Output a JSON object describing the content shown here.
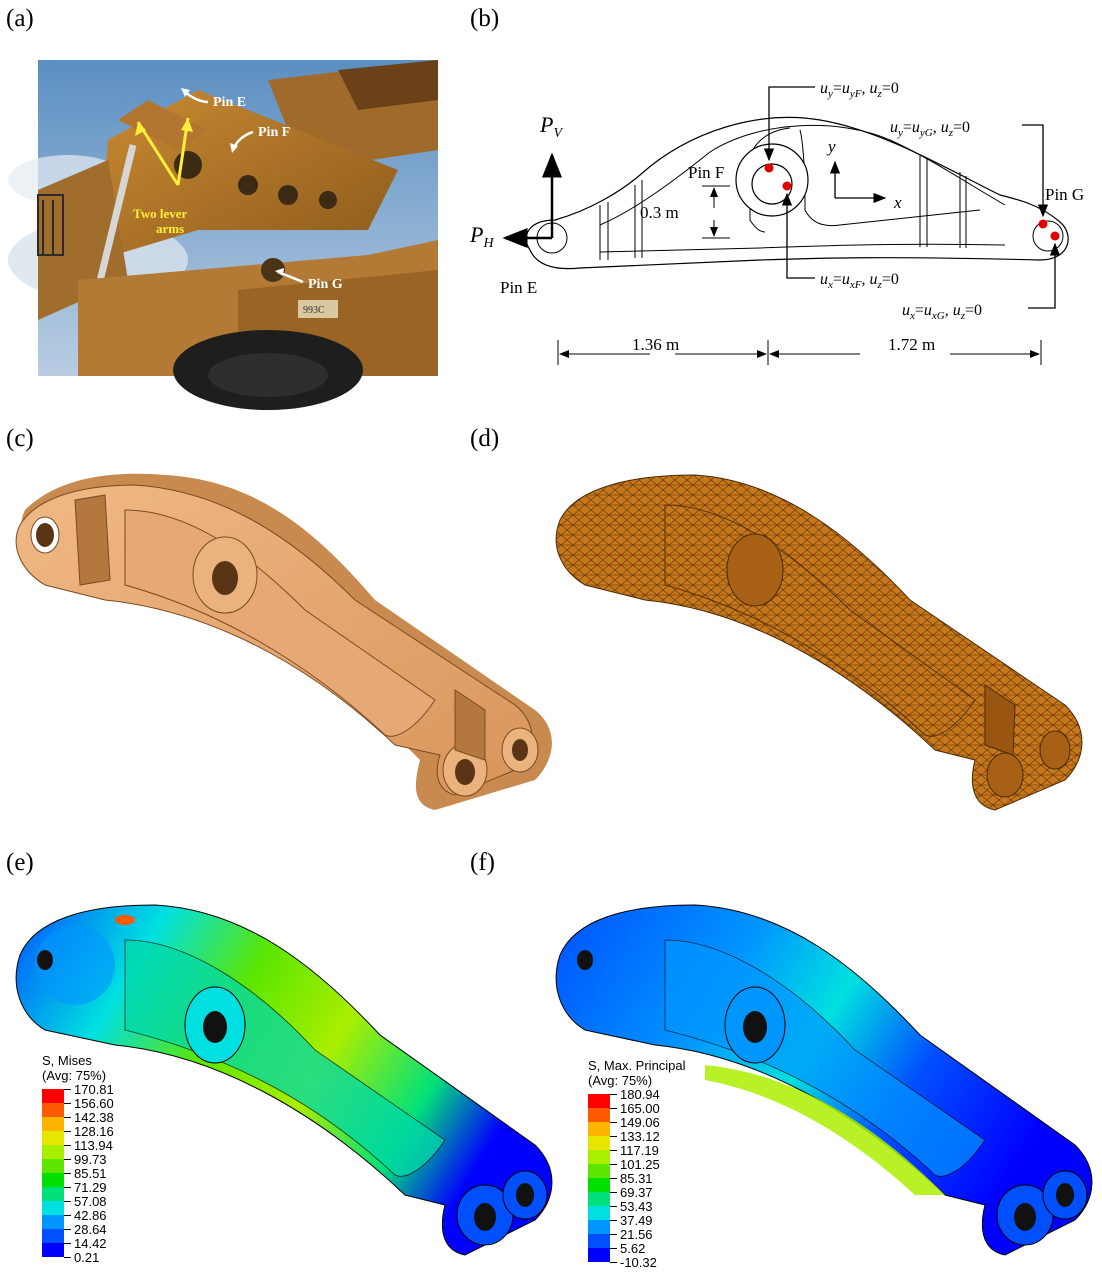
{
  "panels": {
    "a": {
      "label": "(a)",
      "annotations": [
        "Pin E",
        "Pin F",
        "Two lever arms",
        "Pin G"
      ],
      "sign_text": "993C"
    },
    "b": {
      "label": "(b)",
      "force_v": "P",
      "force_v_sub": "V",
      "force_h": "P",
      "force_h_sub": "H",
      "pin_e": "Pin E",
      "pin_f": "Pin F",
      "pin_g": "Pin G",
      "axis_x": "x",
      "axis_y": "y",
      "dim_height": "0.3 m",
      "dim_left": "1.36 m",
      "dim_right": "1.72 m",
      "bc_uyF": "u",
      "bc_list": {
        "uyF": {
          "a": "u",
          "as": "y",
          "eq": "=",
          "b": "u",
          "bs": "yF",
          "c": ", ",
          "d": "u",
          "ds": "z",
          "e": "=0"
        },
        "uyG": {
          "a": "u",
          "as": "y",
          "eq": "=",
          "b": "u",
          "bs": "yG",
          "c": ", ",
          "d": "u",
          "ds": "z",
          "e": "=0"
        },
        "uxF": {
          "a": "u",
          "as": "x",
          "eq": "=",
          "b": "u",
          "bs": "xF",
          "c": ", ",
          "d": "u",
          "ds": "z",
          "e": "=0"
        },
        "uxG": {
          "a": "u",
          "as": "x",
          "eq": "=",
          "b": "u",
          "bs": "xG",
          "c": ", ",
          "d": "u",
          "ds": "z",
          "e": "=0"
        }
      }
    },
    "c": {
      "label": "(c)"
    },
    "d": {
      "label": "(d)"
    },
    "e": {
      "label": "(e)",
      "legend_title_1": "S, Mises",
      "legend_title_2": "(Avg: 75%)",
      "ticks": [
        "170.81",
        "156.60",
        "142.38",
        "128.16",
        "113.94",
        "99.73",
        "85.51",
        "71.29",
        "57.08",
        "42.86",
        "28.64",
        "14.42",
        "0.21"
      ]
    },
    "f": {
      "label": "(f)",
      "legend_title_1": "S, Max. Principal",
      "legend_title_2": "(Avg: 75%)",
      "ticks": [
        "180.94",
        "165.00",
        "149.06",
        "133.12",
        "117.19",
        "101.25",
        "85.31",
        "69.37",
        "53.43",
        "37.49",
        "21.56",
        "5.62",
        "-10.32"
      ]
    }
  },
  "colors": {
    "solid_model": "#e8aa73",
    "mesh_model": "#c8781c",
    "contour_scale": [
      "#ff0000",
      "#ff5a00",
      "#ffb400",
      "#e6e600",
      "#aaee00",
      "#5ce600",
      "#00e000",
      "#00e07a",
      "#00e0e0",
      "#0096ff",
      "#0050ff",
      "#0000ff"
    ]
  }
}
